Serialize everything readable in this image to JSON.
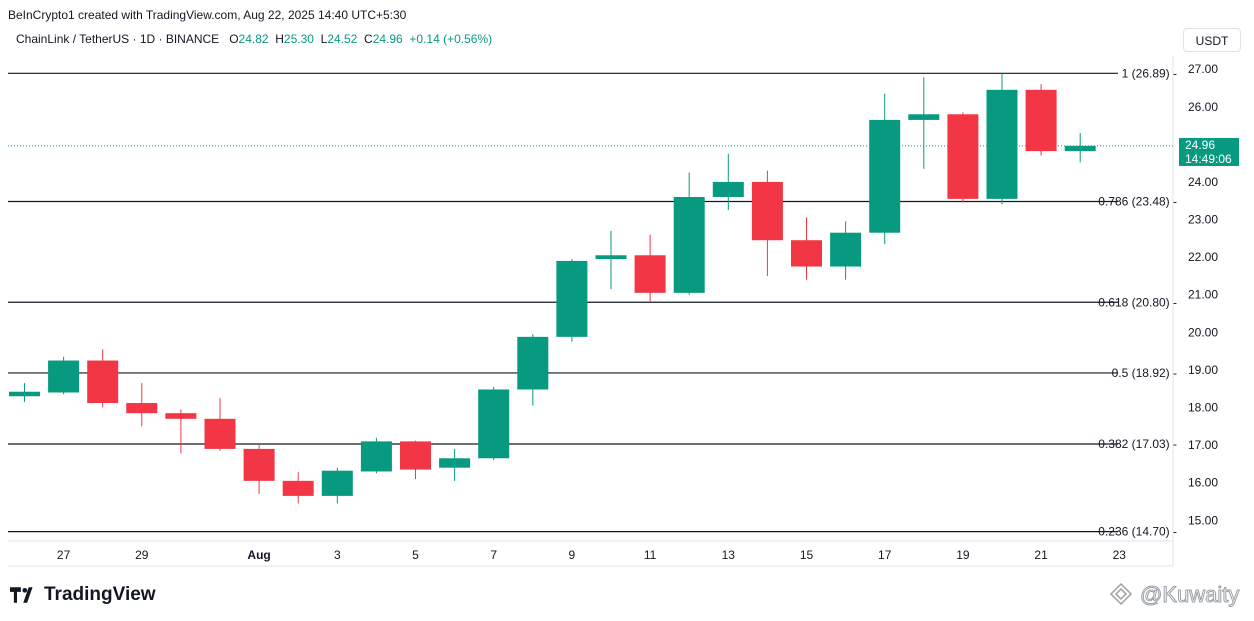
{
  "credit": "BeInCrypto1 created with TradingView.com, Aug 22, 2025 14:40 UTC+5:30",
  "legend": {
    "symbol": "ChainLink / TetherUS · 1D · BINANCE",
    "o_label": "O",
    "o_value": "24.82",
    "h_label": "H",
    "h_value": "25.30",
    "l_label": "L",
    "l_value": "24.52",
    "c_label": "C",
    "c_value": "24.96",
    "change": "+0.14 (+0.56%)"
  },
  "currency_unit": "USDT",
  "last_price": {
    "value": "24.96",
    "countdown": "14:49:06"
  },
  "branding": {
    "logo_text": "TradingView",
    "watermark": "@Kuwaity"
  },
  "colors": {
    "up": "#089981",
    "down": "#f23645",
    "fib_line": "#131722",
    "last_line": "#089981"
  },
  "chart_data": {
    "type": "candlestick",
    "symbol": "ChainLink / TetherUS",
    "interval": "1D",
    "ylim": [
      14.45,
      27.35
    ],
    "y_ticks": [
      "15.00",
      "16.00",
      "17.00",
      "18.00",
      "19.00",
      "20.00",
      "21.00",
      "22.00",
      "23.00",
      "24.00",
      "25.00",
      "26.00",
      "27.00"
    ],
    "x_ticks": [
      {
        "label": "27",
        "day": 1
      },
      {
        "label": "29",
        "day": 3
      },
      {
        "label": "Aug",
        "day": 6
      },
      {
        "label": "3",
        "day": 8
      },
      {
        "label": "5",
        "day": 10
      },
      {
        "label": "7",
        "day": 12
      },
      {
        "label": "9",
        "day": 14
      },
      {
        "label": "11",
        "day": 16
      },
      {
        "label": "13",
        "day": 18
      },
      {
        "label": "15",
        "day": 20
      },
      {
        "label": "17",
        "day": 22
      },
      {
        "label": "19",
        "day": 24
      },
      {
        "label": "21",
        "day": 26
      },
      {
        "label": "23",
        "day": 28
      }
    ],
    "candles": [
      {
        "day": 0,
        "o": 18.3,
        "h": 18.65,
        "l": 18.15,
        "c": 18.42
      },
      {
        "day": 1,
        "o": 18.4,
        "h": 19.35,
        "l": 18.35,
        "c": 19.25
      },
      {
        "day": 2,
        "o": 19.25,
        "h": 19.55,
        "l": 18.0,
        "c": 18.12
      },
      {
        "day": 3,
        "o": 18.12,
        "h": 18.65,
        "l": 17.5,
        "c": 17.85
      },
      {
        "day": 4,
        "o": 17.85,
        "h": 17.95,
        "l": 16.78,
        "c": 17.7
      },
      {
        "day": 5,
        "o": 17.7,
        "h": 18.25,
        "l": 16.85,
        "c": 16.9
      },
      {
        "day": 6,
        "o": 16.9,
        "h": 17.0,
        "l": 15.7,
        "c": 16.05
      },
      {
        "day": 7,
        "o": 16.05,
        "h": 16.28,
        "l": 15.45,
        "c": 15.65
      },
      {
        "day": 8,
        "o": 15.65,
        "h": 16.4,
        "l": 15.45,
        "c": 16.32
      },
      {
        "day": 9,
        "o": 16.3,
        "h": 17.2,
        "l": 16.25,
        "c": 17.1
      },
      {
        "day": 10,
        "o": 17.1,
        "h": 17.12,
        "l": 16.1,
        "c": 16.35
      },
      {
        "day": 11,
        "o": 16.4,
        "h": 16.9,
        "l": 16.05,
        "c": 16.65
      },
      {
        "day": 12,
        "o": 16.65,
        "h": 18.55,
        "l": 16.6,
        "c": 18.48
      },
      {
        "day": 13,
        "o": 18.48,
        "h": 19.95,
        "l": 18.05,
        "c": 19.88
      },
      {
        "day": 14,
        "o": 19.88,
        "h": 21.95,
        "l": 19.75,
        "c": 21.9
      },
      {
        "day": 15,
        "o": 21.95,
        "h": 22.7,
        "l": 21.15,
        "c": 22.05
      },
      {
        "day": 16,
        "o": 22.05,
        "h": 22.6,
        "l": 20.8,
        "c": 21.05
      },
      {
        "day": 17,
        "o": 21.05,
        "h": 24.25,
        "l": 21.0,
        "c": 23.6
      },
      {
        "day": 18,
        "o": 23.6,
        "h": 24.75,
        "l": 23.25,
        "c": 24.0
      },
      {
        "day": 19,
        "o": 24.0,
        "h": 24.3,
        "l": 21.5,
        "c": 22.45
      },
      {
        "day": 20,
        "o": 22.45,
        "h": 23.05,
        "l": 21.4,
        "c": 21.75
      },
      {
        "day": 21,
        "o": 21.75,
        "h": 22.95,
        "l": 21.4,
        "c": 22.65
      },
      {
        "day": 22,
        "o": 22.65,
        "h": 26.35,
        "l": 22.35,
        "c": 25.65
      },
      {
        "day": 23,
        "o": 25.65,
        "h": 26.78,
        "l": 24.35,
        "c": 25.8
      },
      {
        "day": 24,
        "o": 25.8,
        "h": 25.85,
        "l": 23.45,
        "c": 23.55
      },
      {
        "day": 25,
        "o": 23.55,
        "h": 26.89,
        "l": 23.4,
        "c": 26.45
      },
      {
        "day": 26,
        "o": 26.45,
        "h": 26.6,
        "l": 24.7,
        "c": 24.82
      },
      {
        "day": 27,
        "o": 24.82,
        "h": 25.3,
        "l": 24.52,
        "c": 24.96
      }
    ],
    "fib_levels": [
      {
        "label": "1 (26.89)",
        "value": 26.89
      },
      {
        "label": "0.786 (23.48)",
        "value": 23.48
      },
      {
        "label": "0.618 (20.80)",
        "value": 20.8
      },
      {
        "label": "0.5 (18.92)",
        "value": 18.92
      },
      {
        "label": "0.382 (17.03)",
        "value": 17.03
      },
      {
        "label": "0.236 (14.70)",
        "value": 14.7
      }
    ],
    "last_price": 24.96
  }
}
